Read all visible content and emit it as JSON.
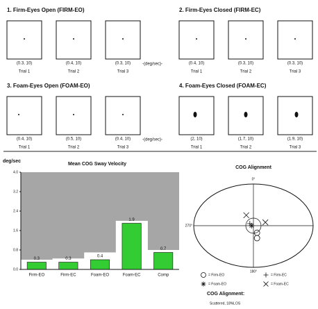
{
  "trial_groups": [
    {
      "title": "1. Firm-Eyes Open (FIRM-EO)",
      "unit": "-(deg/sec)-",
      "trials": [
        {
          "value": "(0.3, 10)",
          "name": "Trial 1"
        },
        {
          "value": "(0.4, 10)",
          "name": "Trial 2"
        },
        {
          "value": "(0.3, 10)",
          "name": "Trial 3"
        }
      ]
    },
    {
      "title": "2. Firm-Eyes Closed (FIRM-EC)",
      "trials": [
        {
          "value": "(0.4, 10)",
          "name": "Trial 1"
        },
        {
          "value": "(0.3, 10)",
          "name": "Trial 2"
        },
        {
          "value": "(0.3, 10)",
          "name": "Trial 3"
        }
      ]
    },
    {
      "title": "3. Foam-Eyes Open (FOAM-EO)",
      "unit": "-(deg/sec)-",
      "trials": [
        {
          "value": "(0.4, 10)",
          "name": "Trial 1"
        },
        {
          "value": "(0.5, 10)",
          "name": "Trial 2"
        },
        {
          "value": "(0.4, 10)",
          "name": "Trial 3"
        }
      ]
    },
    {
      "title": "4. Foam-Eyes Closed (FOAM-EC)",
      "trials": [
        {
          "value": "(2, 10)",
          "name": "Trial 1"
        },
        {
          "value": "(1.7, 10)",
          "name": "Trial 2"
        },
        {
          "value": "(1.9, 10)",
          "name": "Trial 3"
        }
      ]
    }
  ],
  "chart_data": {
    "type": "bar",
    "title": "Mean COG Sway Velocity",
    "y_label": "deg/sec",
    "categories": [
      "Firm-EO",
      "Firm-EC",
      "Foam-EO",
      "Foam-EC",
      "Comp"
    ],
    "values": [
      0.3,
      0.3,
      0.4,
      1.9,
      0.7
    ],
    "reference_values": [
      0.4,
      0.45,
      0.7,
      2.0,
      0.8
    ],
    "color": "#33cc33",
    "background": "#a6a6a6",
    "ylim": [
      0,
      4
    ],
    "yticks": [
      {
        "value": 0,
        "label": "0.0"
      },
      0.8,
      1.6,
      2.4,
      3.2,
      {
        "value": 4,
        "label": "4.0"
      }
    ]
  },
  "alignment": {
    "title": "COG Alignment",
    "top_label": "0°",
    "bottom_label": "180°",
    "left_label": "270°",
    "legend": [
      {
        "symbol": "circle",
        "label": "= Firm-EO"
      },
      {
        "symbol": "plus",
        "label": "= Firm-EC"
      },
      {
        "symbol": "star",
        "label": "= Foam-EO"
      },
      {
        "symbol": "x",
        "label": "= Foam-EC"
      }
    ],
    "points": [
      {
        "series": 0,
        "x": 0.06,
        "y": -0.17
      },
      {
        "series": 0,
        "x": 0.06,
        "y": -0.3
      },
      {
        "series": 1,
        "x": -0.06,
        "y": 0.05
      },
      {
        "series": 2,
        "x": -0.03,
        "y": 0
      },
      {
        "series": 3,
        "x": -0.12,
        "y": 0.25
      },
      {
        "series": 3,
        "x": 0.2,
        "y": 0.08
      }
    ],
    "summary_title": "COG Alignment:",
    "summary": "Scattered, 18%LOS"
  }
}
